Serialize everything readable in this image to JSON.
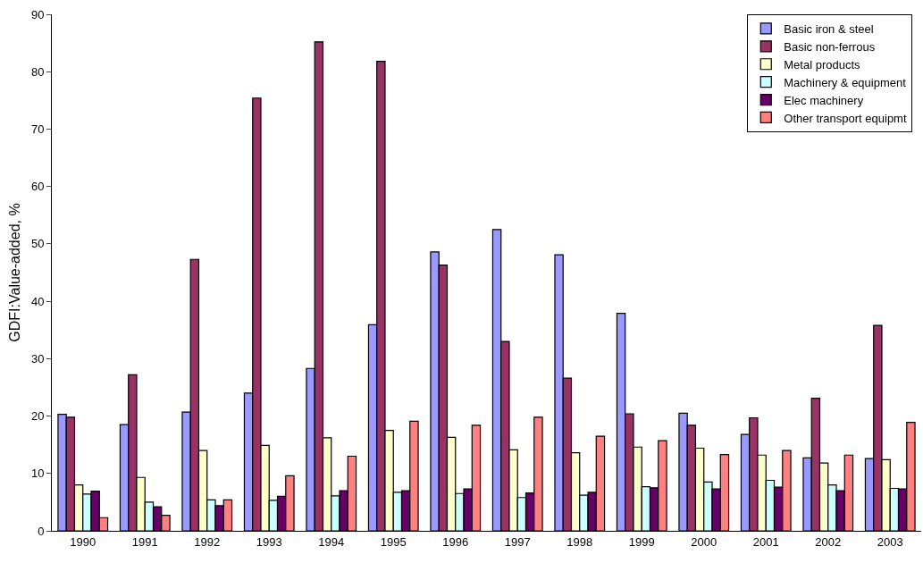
{
  "chart_data": {
    "type": "bar",
    "ylabel": "GDFI:Value-added, %",
    "categories": [
      "1990",
      "1991",
      "1992",
      "1993",
      "1994",
      "1995",
      "1996",
      "1997",
      "1998",
      "1999",
      "2000",
      "2001",
      "2002",
      "2003"
    ],
    "series": [
      {
        "name": "Basic iron & steel",
        "color": "#9999ff",
        "values": [
          20.3,
          18.5,
          20.7,
          24.0,
          28.3,
          35.9,
          48.6,
          52.5,
          48.1,
          37.9,
          20.5,
          16.8,
          12.7,
          12.6
        ]
      },
      {
        "name": "Basic non-ferrous",
        "color": "#993366",
        "values": [
          19.8,
          27.2,
          47.3,
          75.4,
          85.2,
          81.8,
          46.3,
          33.0,
          26.6,
          20.4,
          18.4,
          19.7,
          23.1,
          35.8
        ]
      },
      {
        "name": "Metal products",
        "color": "#ffffcc",
        "values": [
          8.0,
          9.3,
          14.0,
          14.9,
          16.2,
          17.5,
          16.3,
          14.1,
          13.6,
          14.6,
          14.4,
          13.2,
          11.8,
          12.4
        ]
      },
      {
        "name": "Machinery & equipment",
        "color": "#ccffff",
        "values": [
          6.4,
          5.0,
          5.4,
          5.3,
          6.1,
          6.7,
          6.5,
          5.8,
          6.2,
          7.7,
          8.5,
          8.8,
          8.0,
          7.4
        ]
      },
      {
        "name": "Elec machinery",
        "color": "#660066",
        "values": [
          6.9,
          4.2,
          4.4,
          6.0,
          7.0,
          7.0,
          7.3,
          6.6,
          6.7,
          7.5,
          7.3,
          7.6,
          7.0,
          7.3
        ]
      },
      {
        "name": "Other transport equipmt",
        "color": "#ff8080",
        "values": [
          2.3,
          2.7,
          5.4,
          9.6,
          13.0,
          19.1,
          18.4,
          19.8,
          16.5,
          15.7,
          13.3,
          14.0,
          13.2,
          18.9
        ]
      }
    ],
    "ylim": [
      0,
      90
    ],
    "yticks": [
      0,
      10,
      20,
      30,
      40,
      50,
      60,
      70,
      80,
      90
    ],
    "grid": false,
    "legend": "top right"
  }
}
